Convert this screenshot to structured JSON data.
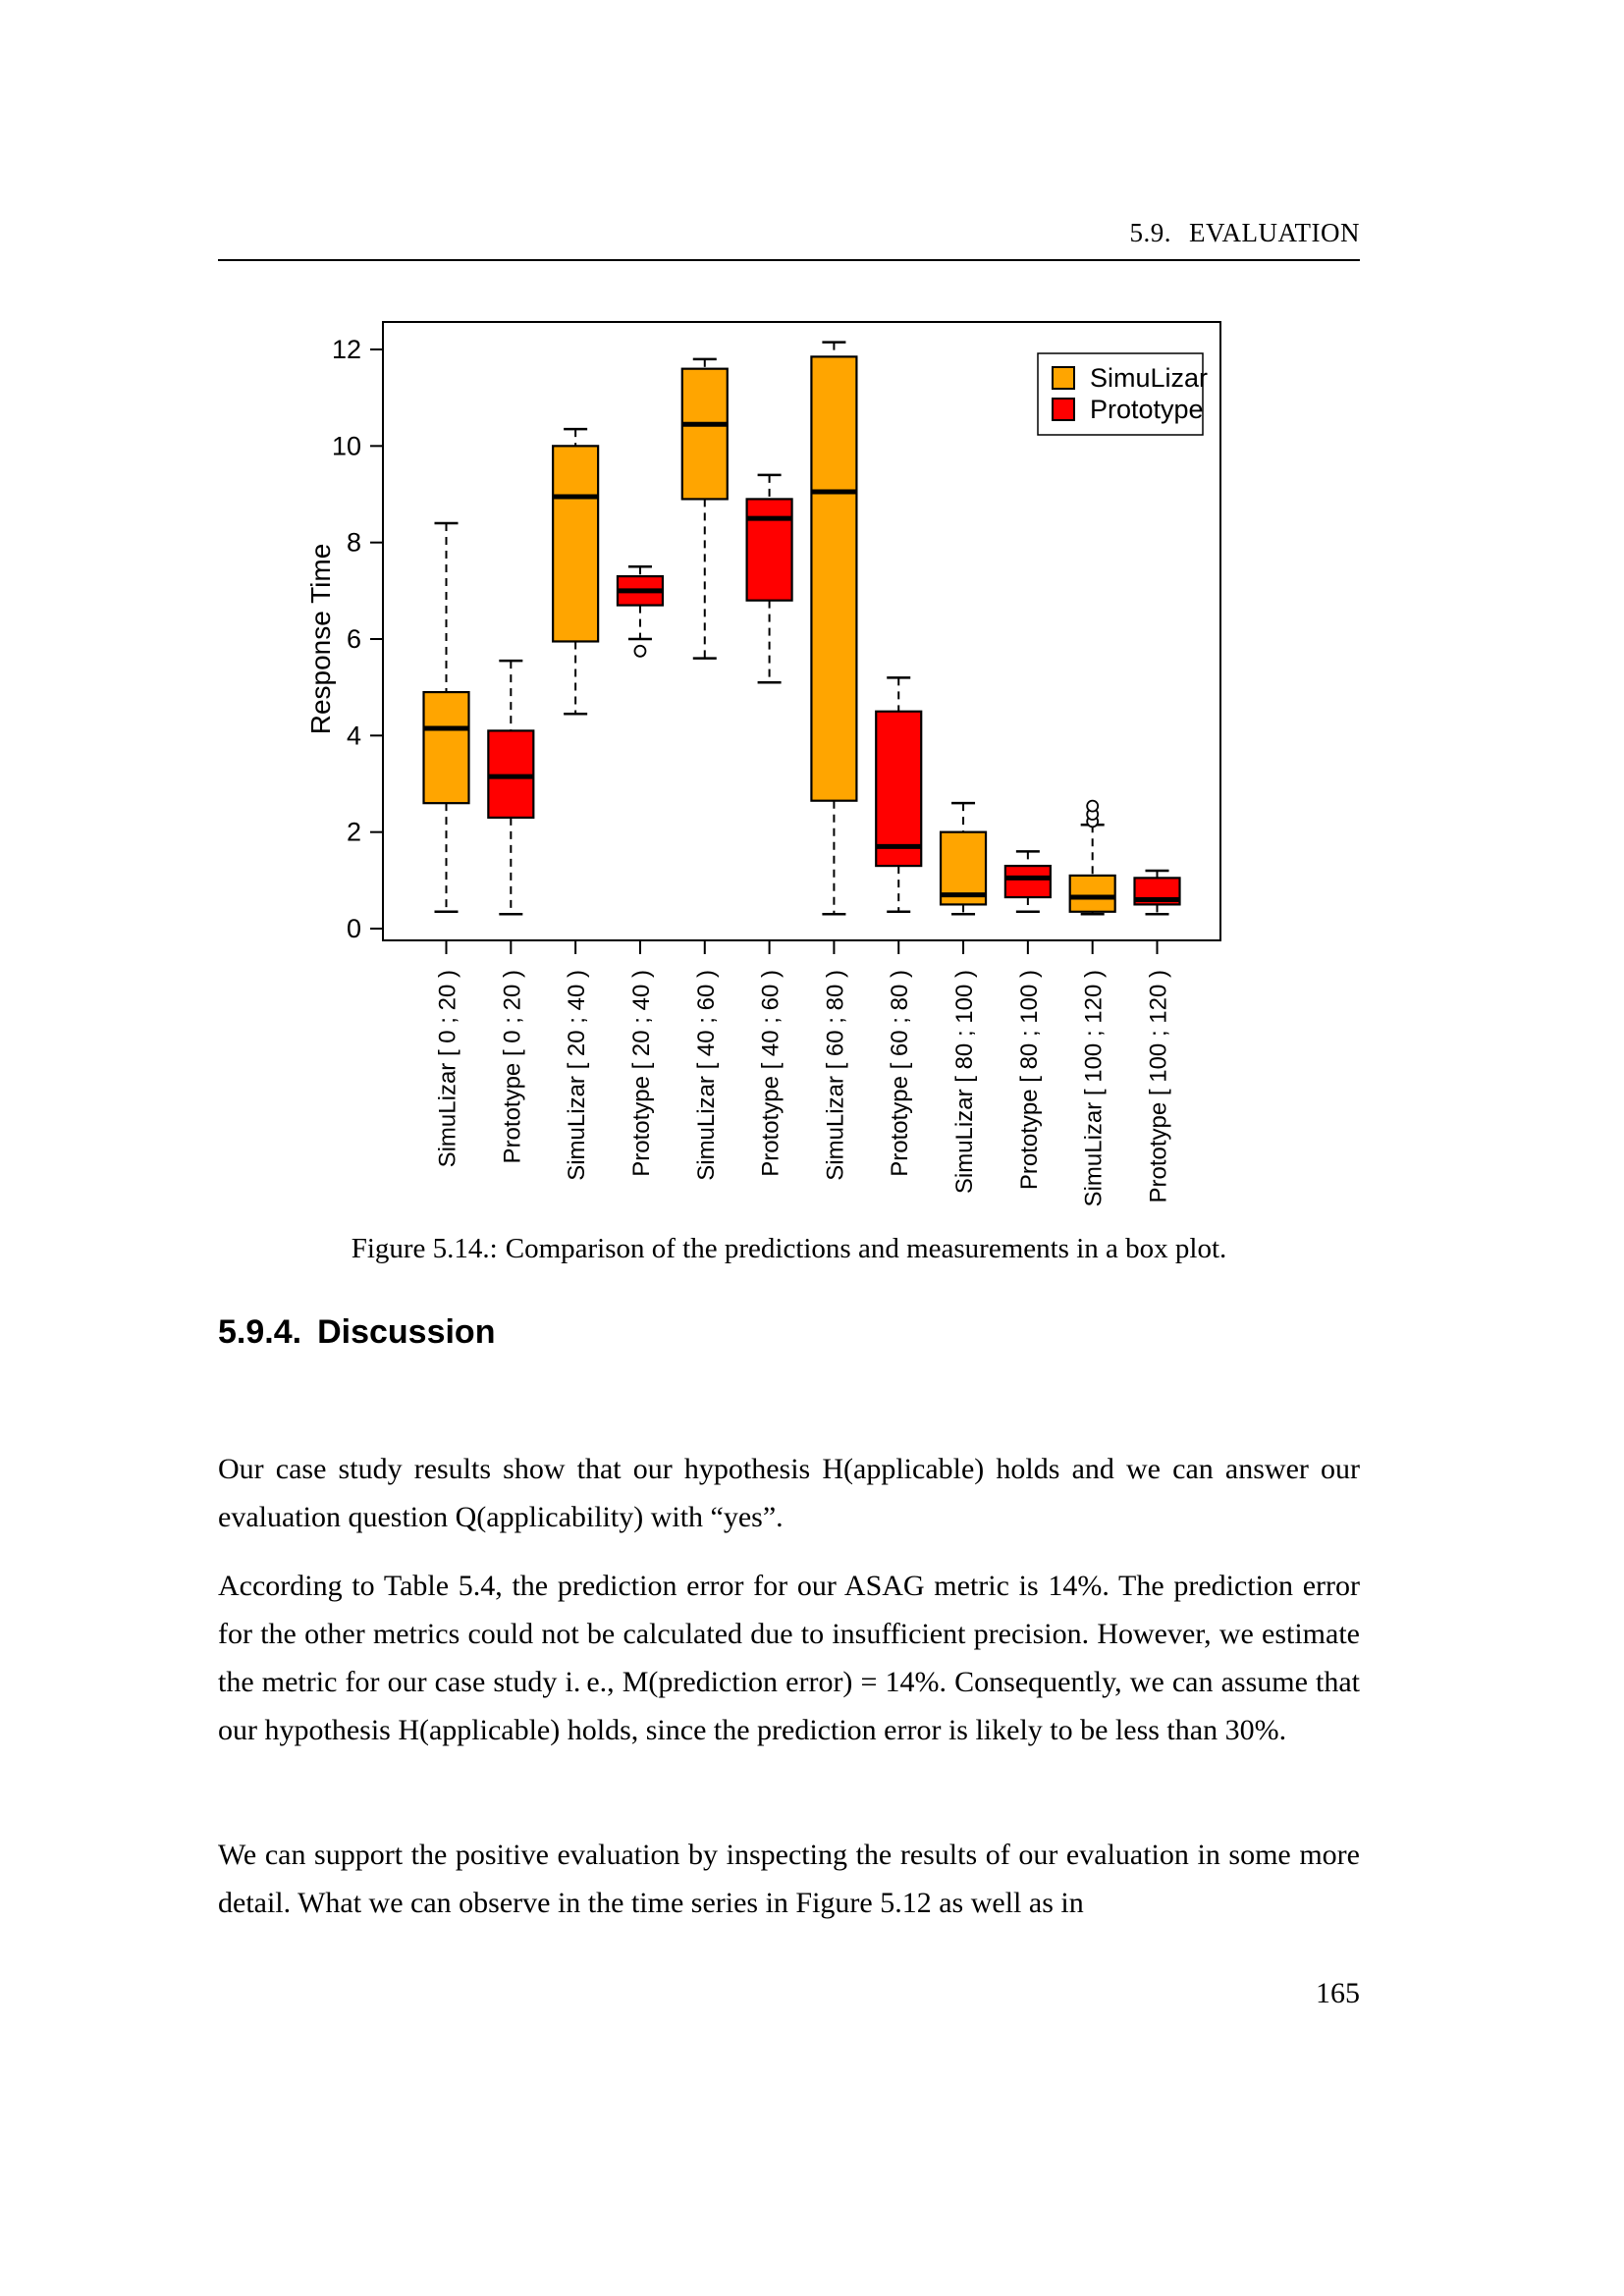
{
  "page": {
    "header": {
      "section_label": "5.9.",
      "section_title": "EVALUATION"
    },
    "figure": {
      "caption_label": "Figure 5.14.:",
      "caption_text": "Comparison of the predictions and measurements in a box plot."
    },
    "heading": {
      "number": "5.9.4.",
      "title": "Discussion"
    },
    "paragraphs": [
      "Our case study results show that our hypothesis H(applicable) holds and we can answer our evaluation question Q(applicability) with “yes”.",
      "According to Table 5.4, the prediction error for our ASAG metric is 14%. The prediction error for the other metrics could not be calculated due to insufficient precision. However, we estimate the metric for our case study i. e., M(prediction error) = 14%. Consequently, we can assume that our hypothesis H(applicable) holds, since the prediction error is likely to be less than 30%.",
      "We can support the positive evaluation by inspecting the results of our evaluation in some more detail. What we can observe in the time series in Figure 5.12 as well as in"
    ],
    "page_number": "165"
  },
  "chart_data": {
    "type": "boxplot",
    "ylabel": "Response Time",
    "ylim": [
      0,
      12
    ],
    "yticks": [
      0,
      2,
      4,
      6,
      8,
      10,
      12
    ],
    "grid": false,
    "legend": {
      "position": "top-right",
      "entries": [
        {
          "label": "SimuLizar",
          "color": "#FFA500"
        },
        {
          "label": "Prototype",
          "color": "#FF0000"
        }
      ]
    },
    "boxes": [
      {
        "label": "SimuLizar [ 0 ; 20 )",
        "series": "SimuLizar",
        "low": 0.35,
        "q1": 2.6,
        "median": 4.15,
        "q3": 4.9,
        "high": 8.4,
        "outliers": []
      },
      {
        "label": "Prototype [ 0 ; 20 )",
        "series": "Prototype",
        "low": 0.3,
        "q1": 2.3,
        "median": 3.15,
        "q3": 4.1,
        "high": 5.55,
        "outliers": []
      },
      {
        "label": "SimuLizar [ 20 ; 40 )",
        "series": "SimuLizar",
        "low": 4.45,
        "q1": 5.95,
        "median": 8.95,
        "q3": 10.0,
        "high": 10.35,
        "outliers": []
      },
      {
        "label": "Prototype [ 20 ; 40 )",
        "series": "Prototype",
        "low": 6.0,
        "q1": 6.7,
        "median": 7.0,
        "q3": 7.3,
        "high": 7.5,
        "outliers": [
          5.75
        ]
      },
      {
        "label": "SimuLizar [ 40 ; 60 )",
        "series": "SimuLizar",
        "low": 5.6,
        "q1": 8.9,
        "median": 10.45,
        "q3": 11.6,
        "high": 11.8,
        "outliers": []
      },
      {
        "label": "Prototype [ 40 ; 60 )",
        "series": "Prototype",
        "low": 5.1,
        "q1": 6.8,
        "median": 8.5,
        "q3": 8.9,
        "high": 9.4,
        "outliers": []
      },
      {
        "label": "SimuLizar [ 60 ; 80 )",
        "series": "SimuLizar",
        "low": 0.3,
        "q1": 2.65,
        "median": 9.05,
        "q3": 11.85,
        "high": 12.15,
        "outliers": []
      },
      {
        "label": "Prototype [ 60 ; 80 )",
        "series": "Prototype",
        "low": 0.35,
        "q1": 1.3,
        "median": 1.7,
        "q3": 4.5,
        "high": 5.2,
        "outliers": []
      },
      {
        "label": "SimuLizar [ 80 ; 100 )",
        "series": "SimuLizar",
        "low": 0.3,
        "q1": 0.5,
        "median": 0.7,
        "q3": 2.0,
        "high": 2.6,
        "outliers": []
      },
      {
        "label": "Prototype [ 80 ; 100 )",
        "series": "Prototype",
        "low": 0.35,
        "q1": 0.65,
        "median": 1.05,
        "q3": 1.3,
        "high": 1.6,
        "outliers": []
      },
      {
        "label": "SimuLizar [ 100 ; 120 )",
        "series": "SimuLizar",
        "low": 0.3,
        "q1": 0.35,
        "median": 0.65,
        "q3": 1.1,
        "high": 2.15,
        "outliers": [
          2.22,
          2.37,
          2.54
        ]
      },
      {
        "label": "Prototype [ 100 ; 120 )",
        "series": "Prototype",
        "low": 0.3,
        "q1": 0.5,
        "median": 0.6,
        "q3": 1.05,
        "high": 1.2,
        "outliers": []
      }
    ]
  }
}
